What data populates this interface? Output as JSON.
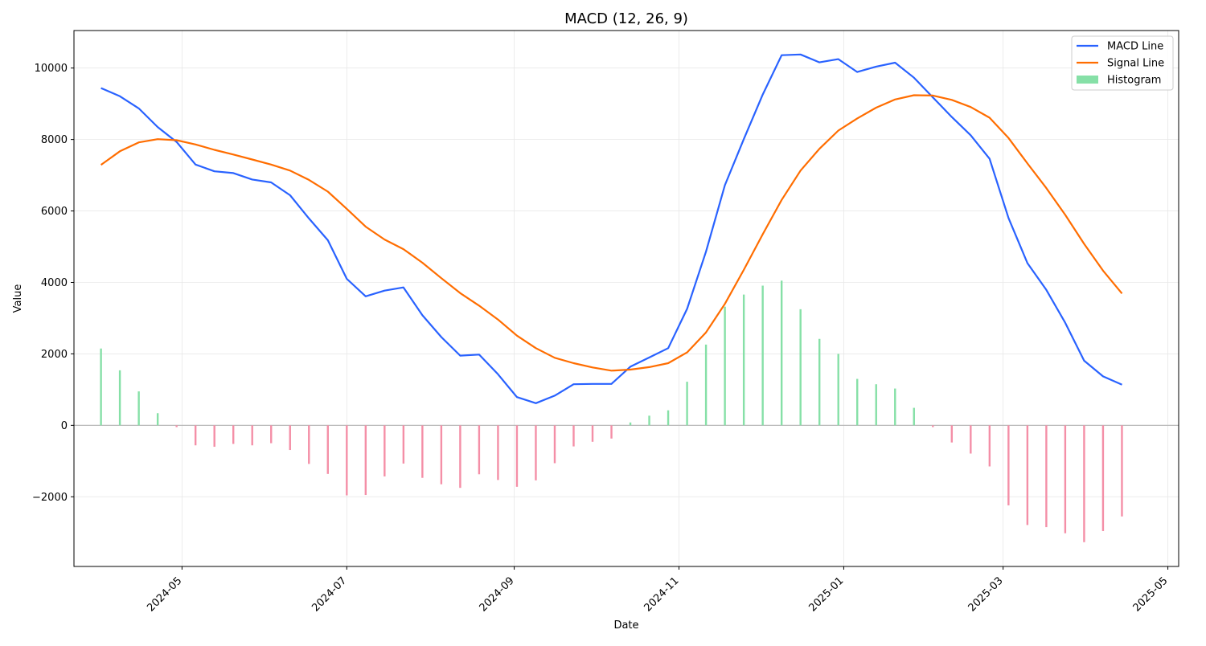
{
  "chart_data": {
    "type": "line",
    "title": "MACD (12, 26, 9)",
    "xlabel": "Date",
    "ylabel": "Value",
    "xlim": [
      "2024-03-22",
      "2025-05-05"
    ],
    "ylim": [
      -3950,
      11050
    ],
    "x_ticks": [
      "2024-05",
      "2024-07",
      "2024-09",
      "2024-11",
      "2025-01",
      "2025-03",
      "2025-05"
    ],
    "x_tick_dates": [
      "2024-05-01",
      "2024-07-01",
      "2024-09-01",
      "2024-11-01",
      "2025-01-01",
      "2025-03-01",
      "2025-05-01"
    ],
    "y_ticks": [
      -2000,
      0,
      2000,
      4000,
      6000,
      8000,
      10000
    ],
    "y_tick_labels": [
      "−2000",
      "0",
      "2000",
      "4000",
      "6000",
      "8000",
      "10000"
    ],
    "grid": true,
    "legend_position": "top-right",
    "dates": [
      "2024-04-01",
      "2024-04-08",
      "2024-04-15",
      "2024-04-22",
      "2024-04-29",
      "2024-05-06",
      "2024-05-13",
      "2024-05-20",
      "2024-05-27",
      "2024-06-03",
      "2024-06-10",
      "2024-06-17",
      "2024-06-24",
      "2024-07-01",
      "2024-07-08",
      "2024-07-15",
      "2024-07-22",
      "2024-07-29",
      "2024-08-05",
      "2024-08-12",
      "2024-08-19",
      "2024-08-26",
      "2024-09-02",
      "2024-09-09",
      "2024-09-16",
      "2024-09-23",
      "2024-09-30",
      "2024-10-07",
      "2024-10-14",
      "2024-10-21",
      "2024-10-28",
      "2024-11-04",
      "2024-11-11",
      "2024-11-18",
      "2024-11-25",
      "2024-12-02",
      "2024-12-09",
      "2024-12-16",
      "2024-12-23",
      "2024-12-30",
      "2025-01-06",
      "2025-01-13",
      "2025-01-20",
      "2025-01-27",
      "2025-02-03",
      "2025-02-10",
      "2025-02-17",
      "2025-02-24",
      "2025-03-03",
      "2025-03-10",
      "2025-03-17",
      "2025-03-24",
      "2025-03-31",
      "2025-04-07",
      "2025-04-14"
    ],
    "series": [
      {
        "name": "MACD Line",
        "color": "#2962ff",
        "values": [
          9440,
          9210,
          8870,
          8350,
          7930,
          7300,
          7110,
          7060,
          6880,
          6800,
          6440,
          5790,
          5180,
          4100,
          3610,
          3770,
          3860,
          3080,
          2470,
          1950,
          1980,
          1430,
          790,
          620,
          830,
          1150,
          1160,
          1160,
          1640,
          1900,
          2160,
          3260,
          4860,
          6720,
          8010,
          9260,
          10360,
          10380,
          10160,
          10250,
          9890,
          10040,
          10150,
          9730,
          9180,
          8630,
          8120,
          7460,
          5800,
          4540,
          3790,
          2870,
          1810,
          1370,
          1140
        ]
      },
      {
        "name": "Signal Line",
        "color": "#ff6d00",
        "values": [
          7290,
          7670,
          7920,
          8010,
          7980,
          7860,
          7710,
          7580,
          7440,
          7300,
          7130,
          6870,
          6540,
          6060,
          5560,
          5200,
          4930,
          4550,
          4120,
          3700,
          3350,
          2960,
          2510,
          2160,
          1890,
          1740,
          1620,
          1530,
          1560,
          1630,
          1740,
          2040,
          2600,
          3400,
          4350,
          5350,
          6310,
          7130,
          7740,
          8250,
          8590,
          8890,
          9120,
          9240,
          9230,
          9110,
          8910,
          8610,
          8040,
          7330,
          6640,
          5890,
          5080,
          4330,
          3690
        ]
      },
      {
        "name": "Histogram",
        "type": "bar",
        "color_positive": "#86e0a7",
        "color_negative": "#f48fa7",
        "values": [
          2150,
          1540,
          950,
          340,
          -50,
          -560,
          -600,
          -520,
          -560,
          -500,
          -690,
          -1080,
          -1360,
          -1960,
          -1950,
          -1430,
          -1070,
          -1470,
          -1650,
          -1750,
          -1370,
          -1530,
          -1720,
          -1540,
          -1060,
          -590,
          -460,
          -370,
          80,
          270,
          420,
          1220,
          2260,
          3320,
          3660,
          3910,
          4050,
          3250,
          2420,
          2000,
          1300,
          1150,
          1030,
          490,
          -50,
          -480,
          -790,
          -1150,
          -2240,
          -2790,
          -2850,
          -3020,
          -3270,
          -2960,
          -2550
        ]
      }
    ]
  }
}
